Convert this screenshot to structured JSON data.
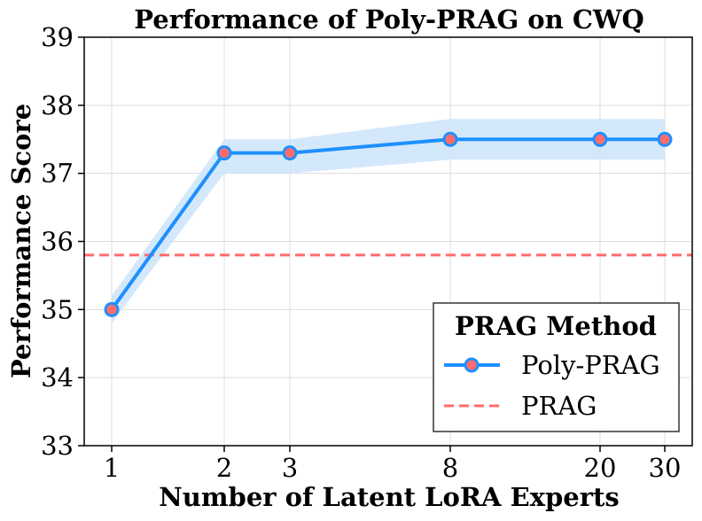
{
  "chart_data": {
    "type": "line",
    "title": "Performance of Poly-PRAG on CWQ",
    "xlabel": "Number of Latent LoRA Experts",
    "ylabel": "Performance Score",
    "x_categories": [
      "1",
      "2",
      "3",
      "8",
      "20",
      "30"
    ],
    "ylim": [
      33,
      39
    ],
    "yticks": [
      33,
      34,
      35,
      36,
      37,
      38,
      39
    ],
    "grid": true,
    "series": [
      {
        "name": "Poly-PRAG",
        "values": [
          35.0,
          37.3,
          37.3,
          37.5,
          37.5,
          37.5
        ],
        "band_lower": [
          34.8,
          37.0,
          37.0,
          37.2,
          37.2,
          37.2
        ],
        "band_upper": [
          35.2,
          37.5,
          37.5,
          37.8,
          37.8,
          37.8
        ],
        "line_color": "#1e90ff",
        "marker_color": "#ff6b6b",
        "band_color": "#cce4fb"
      }
    ],
    "baseline": {
      "name": "PRAG",
      "value": 35.8,
      "color": "#ff6b6b"
    },
    "legend": {
      "title": "PRAG Method",
      "location": "lower-right"
    }
  }
}
